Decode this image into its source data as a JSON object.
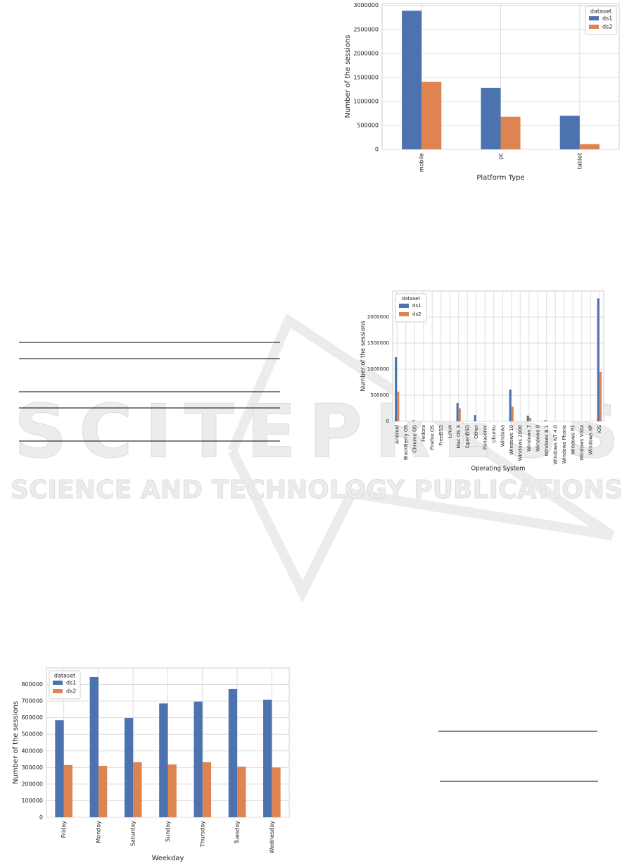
{
  "watermark": {
    "title": "SCITEPRESS",
    "subtitle": "SCIENCE AND TECHNOLOGY PUBLICATIONS"
  },
  "chart_data": [
    {
      "type": "bar",
      "xlabel": "Platform Type",
      "ylabel": "Number of the sessions",
      "categories": [
        "mobile",
        "pc",
        "tablet"
      ],
      "series": [
        {
          "name": "ds1",
          "color": "#4c72b0",
          "values": [
            2890000,
            1280000,
            700000
          ]
        },
        {
          "name": "ds2",
          "color": "#dd8452",
          "values": [
            1410000,
            680000,
            110000
          ]
        }
      ],
      "ylim": [
        0,
        3040000
      ],
      "yticks": [
        0,
        500000,
        1000000,
        1500000,
        2000000,
        2500000,
        3000000
      ],
      "grid": true,
      "legend_title": "dataset",
      "legend_position": "upper right"
    },
    {
      "type": "bar",
      "xlabel": "Operating System",
      "ylabel": "Number of the sessions",
      "categories": [
        "Android",
        "BlackBerry OS",
        "Chrome OS",
        "Fedora",
        "Firefox OS",
        "FreeBSD",
        "Linux",
        "Mac OS X",
        "OpenBSD",
        "Other",
        "Panasonic",
        "Ubuntu",
        "Windows",
        "Windows 10",
        "Windows 2000",
        "Windows 7",
        "Windows 8",
        "Windows 8.1",
        "Windows NT 4.0",
        "Windows Phone",
        "Windows RT",
        "Windows Vista",
        "Windows XP",
        "iOS"
      ],
      "series": [
        {
          "name": "ds1",
          "color": "#4c72b0",
          "values": [
            1230000,
            0,
            20000,
            0,
            0,
            0,
            0,
            350000,
            0,
            120000,
            0,
            0,
            0,
            610000,
            0,
            110000,
            0,
            20000,
            0,
            0,
            0,
            0,
            0,
            2360000
          ]
        },
        {
          "name": "ds2",
          "color": "#dd8452",
          "values": [
            570000,
            0,
            0,
            0,
            0,
            0,
            0,
            250000,
            0,
            0,
            0,
            0,
            0,
            280000,
            0,
            70000,
            0,
            0,
            0,
            0,
            0,
            0,
            0,
            950000
          ]
        }
      ],
      "ylim": [
        0,
        2500000
      ],
      "yticks": [
        0,
        500000,
        1000000,
        1500000,
        2000000
      ],
      "grid": true,
      "legend_title": "dataset",
      "legend_position": "upper left"
    },
    {
      "type": "bar",
      "xlabel": "Weekday",
      "ylabel": "Number of the sessions",
      "categories": [
        "Friday",
        "Monday",
        "Saturday",
        "Sunday",
        "Thursday",
        "Tuesday",
        "Wednesday"
      ],
      "series": [
        {
          "name": "ds1",
          "color": "#4c72b0",
          "values": [
            585000,
            845000,
            598000,
            686000,
            697000,
            773000,
            708000
          ]
        },
        {
          "name": "ds2",
          "color": "#dd8452",
          "values": [
            315000,
            310000,
            332000,
            318000,
            332000,
            305000,
            300000
          ]
        }
      ],
      "ylim": [
        0,
        900000
      ],
      "yticks": [
        0,
        100000,
        200000,
        300000,
        400000,
        500000,
        600000,
        700000,
        800000
      ],
      "grid": true,
      "legend_title": "dataset",
      "legend_position": "upper left"
    }
  ]
}
